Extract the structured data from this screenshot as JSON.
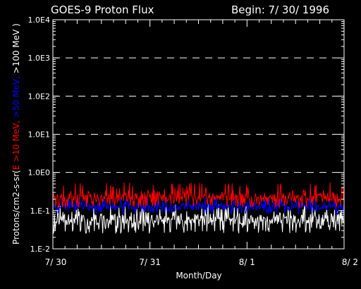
{
  "chart_data": {
    "type": "line",
    "title": "GOES-9 Proton Flux",
    "subtitle": "Begin: 7/ 30/ 1996",
    "xlabel": "Month/Day",
    "ylabel_parts": [
      {
        "text": "Protons/cm2-s-sr(",
        "color": "#ffffff"
      },
      {
        "text": "E >10 MeV, ",
        "color": "#ff0000"
      },
      {
        "text": ">50 MeV, ",
        "color": "#0000ff"
      },
      {
        "text": ">100 MeV )",
        "color": "#ffffff"
      }
    ],
    "y_scale": "log",
    "ylim": [
      0.01,
      10000
    ],
    "y_ticks": [
      {
        "value": 0.01,
        "label": "1.E-2"
      },
      {
        "value": 0.1,
        "label": "1.E-1"
      },
      {
        "value": 1,
        "label": "1.0E0"
      },
      {
        "value": 10,
        "label": "1.0E1"
      },
      {
        "value": 100,
        "label": "1.0E2"
      },
      {
        "value": 1000,
        "label": "1.0E3"
      },
      {
        "value": 10000,
        "label": "1.0E4"
      }
    ],
    "x_ticks": [
      "7/ 30",
      "7/ 31",
      "8/ 1",
      "8/ 2"
    ],
    "xlim_days": [
      0,
      3
    ],
    "grid": "dashed horizontal at decades 1.0E0 to 1.0E3",
    "series": [
      {
        "name": ">10 MeV",
        "color": "#ff0000",
        "typical": 0.22,
        "min": 0.12,
        "max": 0.55
      },
      {
        "name": ">50 MeV",
        "color": "#0000ff",
        "typical": 0.13,
        "min": 0.08,
        "max": 0.22
      },
      {
        "name": ">100 MeV",
        "color": "#ffffff",
        "typical": 0.06,
        "min": 0.025,
        "max": 0.15
      }
    ]
  }
}
